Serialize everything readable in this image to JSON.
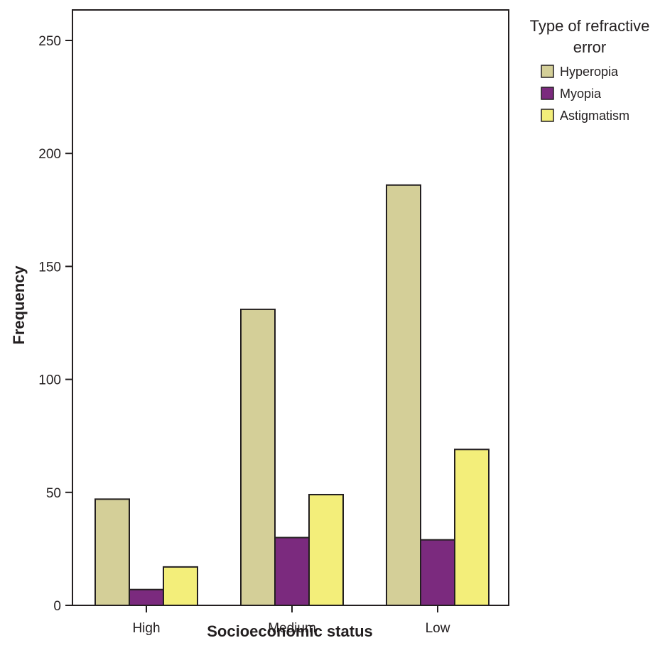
{
  "chart_data": {
    "type": "bar",
    "categories": [
      "High",
      "Medium",
      "Low"
    ],
    "series": [
      {
        "name": "Hyperopia",
        "values": [
          47,
          131,
          186
        ],
        "color": "#d4cf98"
      },
      {
        "name": "Myopia",
        "values": [
          7,
          30,
          29
        ],
        "color": "#7b2a7e"
      },
      {
        "name": "Astigmatism",
        "values": [
          17,
          49,
          69
        ],
        "color": "#f3ee7a"
      }
    ],
    "title": "",
    "xlabel": "Socioeconomic status",
    "ylabel": "Frequency",
    "ylim": [
      0,
      250
    ],
    "yticks": [
      0,
      50,
      100,
      150,
      200,
      250
    ],
    "grid": false,
    "legend": {
      "title": [
        "Type of refractive",
        "error"
      ],
      "placement": "right"
    }
  }
}
